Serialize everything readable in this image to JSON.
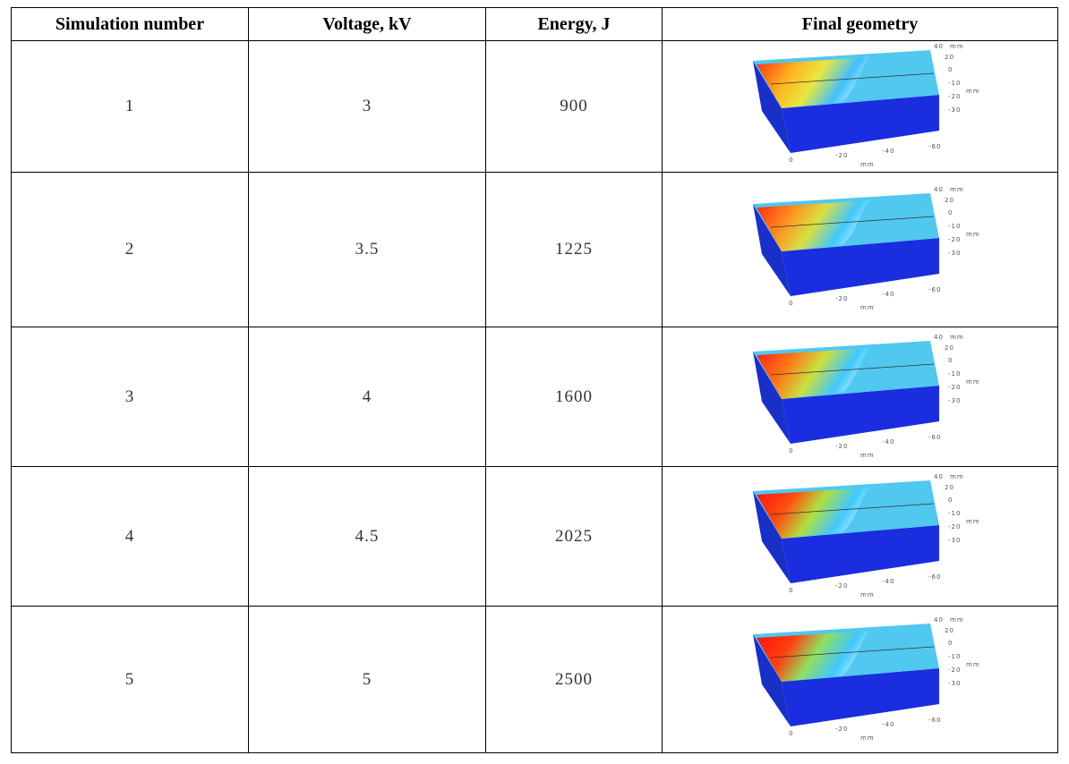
{
  "table": {
    "header": [
      "Simulation number",
      "Voltage, kV",
      "Energy, J",
      "Final geometry"
    ],
    "rows": [
      [
        "1",
        "3",
        "900"
      ],
      [
        "2",
        "3.5",
        "1225"
      ],
      [
        "3",
        "4",
        "1600"
      ],
      [
        "4",
        "4.5",
        "2025"
      ],
      [
        "5",
        "5",
        "2500"
      ]
    ]
  },
  "geometry_labels": {
    "y_ticks": [
      "40",
      "20"
    ],
    "y_unit": "mm",
    "z_ticks": [
      "0",
      "-10",
      "-20",
      "-30"
    ],
    "z_unit": "mm",
    "x_ticks": [
      "0",
      "-20",
      "-40",
      "-60"
    ],
    "x_unit": "mm"
  }
}
